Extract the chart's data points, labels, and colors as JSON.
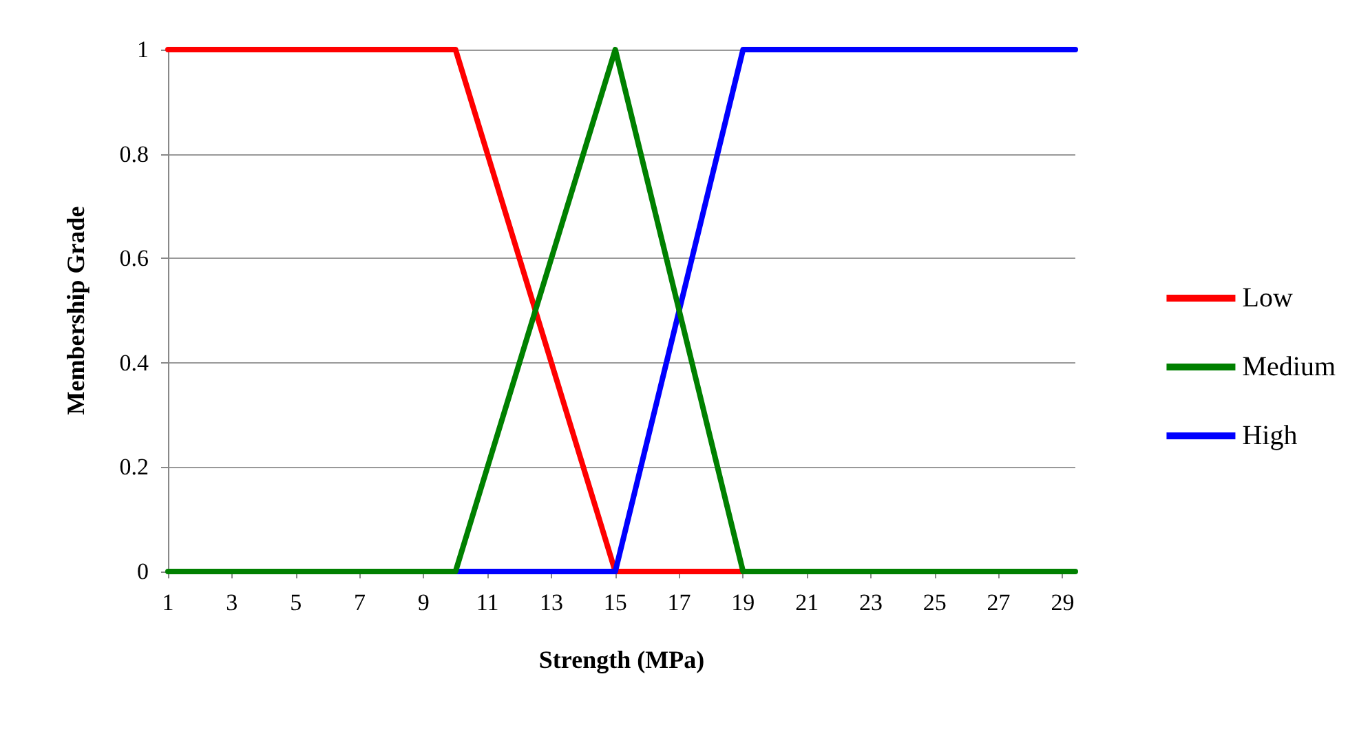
{
  "chart_data": {
    "type": "line",
    "xlabel": "Strength (MPa)",
    "ylabel": "Membership Grade",
    "xlim": [
      1,
      29.4
    ],
    "xticks": [
      1,
      3,
      5,
      7,
      9,
      11,
      13,
      15,
      17,
      19,
      21,
      23,
      25,
      27,
      29
    ],
    "ylim": [
      0,
      1
    ],
    "yticks": [
      0,
      0.2,
      0.4,
      0.6,
      0.8,
      1
    ],
    "series": [
      {
        "name": "Low",
        "color": "#ff0000",
        "x": [
          1,
          10,
          15,
          19
        ],
        "values": [
          1,
          1,
          0,
          0
        ]
      },
      {
        "name": "High",
        "color": "#0000ff",
        "x": [
          10,
          15,
          19,
          29.4
        ],
        "values": [
          0,
          0,
          1,
          1
        ]
      },
      {
        "name": "Medium",
        "color": "#008000",
        "x": [
          1,
          10,
          15,
          19,
          29.4
        ],
        "values": [
          0,
          0,
          1,
          0,
          0
        ]
      }
    ],
    "grid": "y",
    "legend": "right",
    "marker": "none",
    "line_style": "solid"
  }
}
